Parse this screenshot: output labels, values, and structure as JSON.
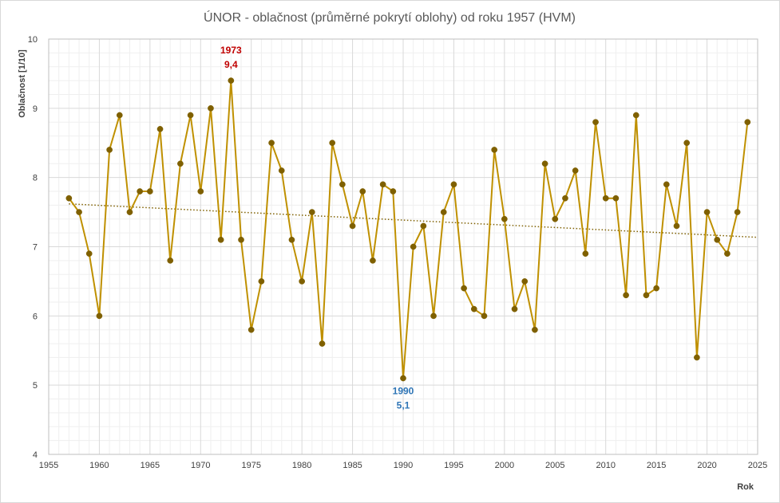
{
  "chart_data": {
    "type": "line",
    "title": "ÚNOR - oblačnost (průměrné pokrytí oblohy) od roku 1957 (HVM)",
    "xlabel": "Rok",
    "ylabel": "Oblačnost  [1/10]",
    "xlim": [
      1955,
      2025
    ],
    "ylim": [
      4,
      10
    ],
    "x_ticks": [
      1955,
      1960,
      1965,
      1970,
      1975,
      1980,
      1985,
      1990,
      1995,
      2000,
      2005,
      2010,
      2015,
      2020,
      2025
    ],
    "x_tick_labels": [
      "1955",
      "1960",
      "1965",
      "1970",
      "1975",
      "1980",
      "1985",
      "1990",
      "1995",
      "2000",
      "2005",
      "2010",
      "2015",
      "2020",
      "2025"
    ],
    "y_ticks": [
      4,
      5,
      6,
      7,
      8,
      9,
      10
    ],
    "y_tick_labels": [
      "4",
      "5",
      "6",
      "7",
      "8",
      "9",
      "10"
    ],
    "grid": "major and minor",
    "legend": "none",
    "series": [
      {
        "x": [
          1957,
          1958,
          1959,
          1960,
          1961,
          1962,
          1963,
          1964,
          1965,
          1966,
          1967,
          1968,
          1969,
          1970,
          1971,
          1972,
          1973,
          1974,
          1975,
          1976,
          1977,
          1978,
          1979,
          1980,
          1981,
          1982,
          1983,
          1984,
          1985,
          1986,
          1987,
          1988,
          1989,
          1990,
          1991,
          1992,
          1993,
          1994,
          1995,
          1996,
          1997,
          1998,
          1999,
          2000,
          2001,
          2002,
          2003,
          2004,
          2005,
          2006,
          2007,
          2008,
          2009,
          2010,
          2011,
          2012,
          2013,
          2014,
          2015,
          2016,
          2017,
          2018,
          2019,
          2020,
          2021,
          2022,
          2023,
          2024
        ],
        "values": [
          7.7,
          7.5,
          6.9,
          6.0,
          8.4,
          8.9,
          7.5,
          7.8,
          7.8,
          8.7,
          6.8,
          8.2,
          8.9,
          7.8,
          9.0,
          7.1,
          9.4,
          7.1,
          5.8,
          6.5,
          8.5,
          8.1,
          7.1,
          6.5,
          7.5,
          5.6,
          8.5,
          7.9,
          7.3,
          7.8,
          6.8,
          7.9,
          7.8,
          5.1,
          7.0,
          7.3,
          6.0,
          7.5,
          7.9,
          6.4,
          6.1,
          6.0,
          8.4,
          7.4,
          6.1,
          6.5,
          5.8,
          8.2,
          7.4,
          7.7,
          8.1,
          6.9,
          8.8,
          7.7,
          7.7,
          6.3,
          8.9,
          6.3,
          6.4,
          7.9,
          7.3,
          8.5,
          5.4,
          7.5,
          7.1,
          6.9,
          7.5,
          8.8
        ]
      }
    ],
    "trend": {
      "type": "linear",
      "style": "dotted"
    },
    "annotations": [
      {
        "year_label": "1973",
        "value_label": "9,4",
        "x": 1973,
        "y": 9.4,
        "color": "#c00000",
        "position": "above"
      },
      {
        "year_label": "1990",
        "value_label": "5,1",
        "x": 1990,
        "y": 5.1,
        "color": "#2e75b6",
        "position": "below"
      }
    ],
    "colors": {
      "line": "#bf9000",
      "marker": "#7f6000",
      "trend": "#7f6000",
      "grid_major": "#d9d9d9",
      "grid_minor": "#efefef",
      "title": "#595959",
      "text": "#404040"
    }
  }
}
